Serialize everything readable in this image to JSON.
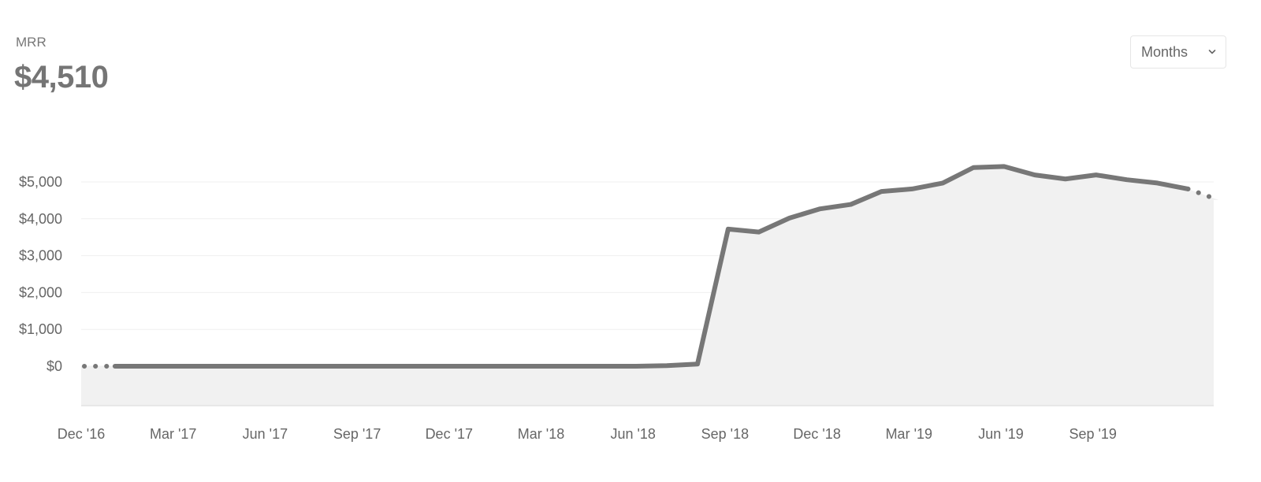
{
  "metric": {
    "label": "MRR",
    "value": "$4,510"
  },
  "period_select": {
    "selected": "Months",
    "icon": "chevron-down-icon"
  },
  "chart_data": {
    "type": "area",
    "title": "",
    "xlabel": "",
    "ylabel": "",
    "ylim": [
      -1000,
      5000
    ],
    "y_ticks": [
      0,
      1000,
      2000,
      3000,
      4000,
      5000
    ],
    "y_tick_labels": [
      "$0",
      "$1,000",
      "$2,000",
      "$3,000",
      "$4,000",
      "$5,000"
    ],
    "x_tick_labels": [
      "Dec '16",
      "Mar '17",
      "Jun '17",
      "Sep '17",
      "Dec '17",
      "Mar '18",
      "Jun '18",
      "Sep '18",
      "Dec '18",
      "Mar '19",
      "Jun '19",
      "Sep '19"
    ],
    "x": [
      "Dec '16",
      "Jan '17",
      "Feb '17",
      "Mar '17",
      "Apr '17",
      "May '17",
      "Jun '17",
      "Jul '17",
      "Aug '17",
      "Sep '17",
      "Oct '17",
      "Nov '17",
      "Dec '17",
      "Jan '18",
      "Feb '18",
      "Mar '18",
      "Apr '18",
      "May '18",
      "Jun '18",
      "Jul '18",
      "Aug '18",
      "Sep '18",
      "Oct '18",
      "Nov '18",
      "Dec '18",
      "Jan '19",
      "Feb '19",
      "Mar '19",
      "Apr '19",
      "May '19",
      "Jun '19",
      "Jul '19",
      "Aug '19",
      "Sep '19",
      "Oct '19",
      "Nov '19",
      "Dec '19",
      "Jan '20"
    ],
    "series": [
      {
        "values": [
          0,
          0,
          0,
          0,
          0,
          0,
          0,
          0,
          0,
          0,
          0,
          0,
          0,
          0,
          0,
          0,
          0,
          0,
          0,
          15,
          60,
          3720,
          3640,
          4020,
          4270,
          4390,
          4740,
          4810,
          4970,
          5390,
          5420,
          5190,
          5080,
          5190,
          5060,
          4970,
          4810,
          4510
        ],
        "incomplete_first": 1,
        "incomplete_last": 1
      }
    ],
    "grid": true,
    "legend": "none"
  }
}
